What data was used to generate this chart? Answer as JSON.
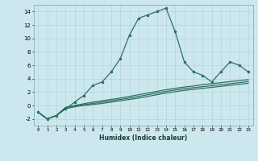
{
  "xlabel": "Humidex (Indice chaleur)",
  "background_color": "#cce8ee",
  "line_color": "#2d7060",
  "grid_color": "#b8d8de",
  "xlim": [
    -0.5,
    23.5
  ],
  "ylim": [
    -3,
    15
  ],
  "main_x": [
    0,
    1,
    2,
    3,
    4,
    5,
    6,
    7,
    8,
    9,
    10,
    11,
    12,
    13,
    14,
    15,
    16,
    17,
    18,
    19,
    20,
    21,
    22,
    23
  ],
  "main_y": [
    -1,
    -2,
    -1.5,
    -0.5,
    0.5,
    1.5,
    3.0,
    3.5,
    5.0,
    7.0,
    10.5,
    13.0,
    13.5,
    14.0,
    14.5,
    11.0,
    6.5,
    5.0,
    4.5,
    3.5,
    5.0,
    6.5,
    6.0,
    5.0
  ],
  "line2_x": [
    0,
    1,
    2,
    3,
    4,
    5,
    6,
    7,
    8,
    9,
    10,
    11,
    12,
    13,
    14,
    15,
    16,
    17,
    18,
    19,
    20,
    21,
    22,
    23
  ],
  "line2_y": [
    -1,
    -2,
    -1.5,
    -0.3,
    0.0,
    0.25,
    0.5,
    0.7,
    0.9,
    1.1,
    1.35,
    1.6,
    1.85,
    2.1,
    2.35,
    2.55,
    2.75,
    2.9,
    3.1,
    3.25,
    3.4,
    3.55,
    3.7,
    3.85
  ],
  "line3_x": [
    0,
    1,
    2,
    3,
    4,
    5,
    6,
    7,
    8,
    9,
    10,
    11,
    12,
    13,
    14,
    15,
    16,
    17,
    18,
    19,
    20,
    21,
    22,
    23
  ],
  "line3_y": [
    -1,
    -2,
    -1.5,
    -0.3,
    -0.1,
    0.1,
    0.3,
    0.5,
    0.7,
    0.9,
    1.1,
    1.35,
    1.6,
    1.85,
    2.1,
    2.3,
    2.5,
    2.65,
    2.8,
    2.95,
    3.1,
    3.25,
    3.4,
    3.55
  ],
  "line4_x": [
    0,
    1,
    2,
    3,
    4,
    5,
    6,
    7,
    8,
    9,
    10,
    11,
    12,
    13,
    14,
    15,
    16,
    17,
    18,
    19,
    20,
    21,
    22,
    23
  ],
  "line4_y": [
    -1,
    -2,
    -1.5,
    -0.5,
    -0.2,
    0.0,
    0.15,
    0.3,
    0.5,
    0.7,
    0.9,
    1.1,
    1.35,
    1.6,
    1.85,
    2.05,
    2.25,
    2.4,
    2.55,
    2.7,
    2.85,
    3.0,
    3.15,
    3.3
  ],
  "yticks": [
    -2,
    0,
    2,
    4,
    6,
    8,
    10,
    12,
    14
  ],
  "xticks": [
    0,
    1,
    2,
    3,
    4,
    5,
    6,
    7,
    8,
    9,
    10,
    11,
    12,
    13,
    14,
    15,
    16,
    17,
    18,
    19,
    20,
    21,
    22,
    23
  ]
}
